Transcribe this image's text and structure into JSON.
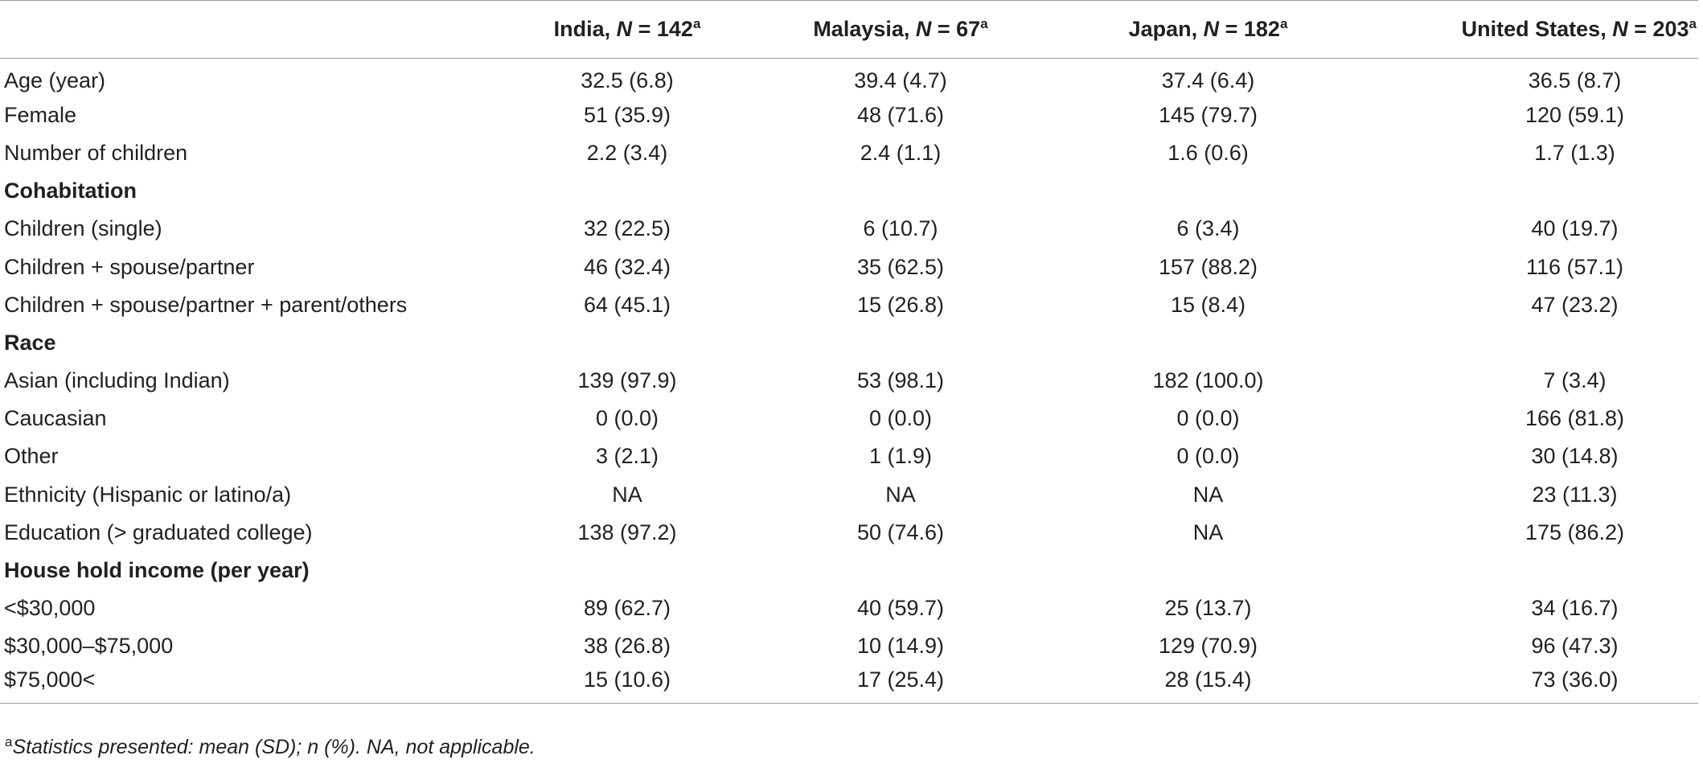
{
  "table": {
    "headers": [
      {
        "name": "",
        "n_label": "",
        "n_value": "",
        "mark": ""
      },
      {
        "name": "India, ",
        "n_label": "N",
        "n_value": " = 142",
        "mark": "a"
      },
      {
        "name": "Malaysia, ",
        "n_label": "N",
        "n_value": " = 67",
        "mark": "a"
      },
      {
        "name": "Japan, ",
        "n_label": "N",
        "n_value": " = 182",
        "mark": "a"
      },
      {
        "name": "United States, ",
        "n_label": "N",
        "n_value": " = 203",
        "mark": "a"
      }
    ],
    "rows": [
      {
        "label": "Age (year)",
        "section": false,
        "values": [
          "32.5 (6.8)",
          "39.4 (4.7)",
          "37.4 (6.4)",
          "36.5 (8.7)"
        ]
      },
      {
        "label": "Female",
        "section": false,
        "values": [
          "51 (35.9)",
          "48 (71.6)",
          "145 (79.7)",
          "120 (59.1)"
        ]
      },
      {
        "label": "Number of children",
        "section": false,
        "values": [
          "2.2 (3.4)",
          "2.4 (1.1)",
          "1.6 (0.6)",
          "1.7 (1.3)"
        ]
      },
      {
        "label": "Cohabitation",
        "section": true,
        "values": [
          "",
          "",
          "",
          ""
        ]
      },
      {
        "label": "Children (single)",
        "section": false,
        "values": [
          "32 (22.5)",
          "6 (10.7)",
          "6 (3.4)",
          "40 (19.7)"
        ]
      },
      {
        "label": "Children + spouse/partner",
        "section": false,
        "values": [
          "46 (32.4)",
          "35 (62.5)",
          "157 (88.2)",
          "116 (57.1)"
        ]
      },
      {
        "label": "Children + spouse/partner + parent/others",
        "section": false,
        "values": [
          "64 (45.1)",
          "15 (26.8)",
          "15 (8.4)",
          "47 (23.2)"
        ]
      },
      {
        "label": "Race",
        "section": true,
        "values": [
          "",
          "",
          "",
          ""
        ]
      },
      {
        "label": "Asian (including Indian)",
        "section": false,
        "values": [
          "139 (97.9)",
          "53 (98.1)",
          "182 (100.0)",
          "7 (3.4)"
        ]
      },
      {
        "label": "Caucasian",
        "section": false,
        "values": [
          "0 (0.0)",
          "0 (0.0)",
          "0 (0.0)",
          "166 (81.8)"
        ]
      },
      {
        "label": "Other",
        "section": false,
        "values": [
          "3 (2.1)",
          "1 (1.9)",
          "0 (0.0)",
          "30 (14.8)"
        ]
      },
      {
        "label": "Ethnicity (Hispanic or latino/a)",
        "section": false,
        "values": [
          "NA",
          "NA",
          "NA",
          "23 (11.3)"
        ]
      },
      {
        "label": "Education (> graduated college)",
        "section": false,
        "values": [
          "138 (97.2)",
          "50 (74.6)",
          "NA",
          "175 (86.2)"
        ]
      },
      {
        "label": "House hold income (per year)",
        "section": true,
        "values": [
          "",
          "",
          "",
          ""
        ]
      },
      {
        "label": "<$30,000",
        "section": false,
        "values": [
          "89 (62.7)",
          "40 (59.7)",
          "25 (13.7)",
          "34 (16.7)"
        ]
      },
      {
        "label": "$30,000–$75,000",
        "section": false,
        "values": [
          "38 (26.8)",
          "10 (14.9)",
          "129 (70.9)",
          "96 (47.3)"
        ]
      },
      {
        "label": "$75,000<",
        "section": false,
        "values": [
          "15 (10.6)",
          "17 (25.4)",
          "28 (15.4)",
          "73 (36.0)"
        ]
      }
    ]
  },
  "footnote": {
    "mark": "a",
    "text": "Statistics presented: mean (SD); n (%). NA, not applicable."
  }
}
